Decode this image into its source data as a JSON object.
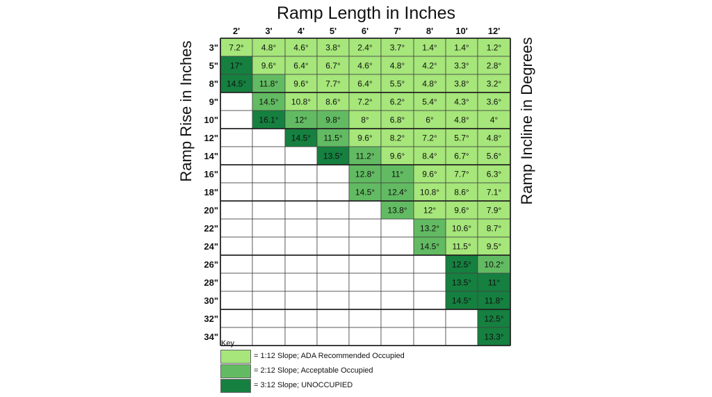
{
  "chart_data": {
    "type": "table",
    "title": "Ramp Length in Inches",
    "ylabel_left": "Ramp Rise in Inches",
    "ylabel_right": "Ramp Incline in Degrees",
    "columns": [
      "2'",
      "3'",
      "4'",
      "5'",
      "6'",
      "7'",
      "8'",
      "10'",
      "12'"
    ],
    "rows": [
      "3\"",
      "5\"",
      "8\"",
      "9\"",
      "10\"",
      "12\"",
      "14\"",
      "16\"",
      "18\"",
      "20\"",
      "22\"",
      "24\"",
      "26\"",
      "28\"",
      "30\"",
      "32\"",
      "34\""
    ],
    "cells": [
      [
        [
          "7.2°",
          1
        ],
        [
          "4.8°",
          1
        ],
        [
          "4.6°",
          1
        ],
        [
          "3.8°",
          1
        ],
        [
          "2.4°",
          1
        ],
        [
          "3.7°",
          1
        ],
        [
          "1.4°",
          1
        ],
        [
          "1.4°",
          1
        ],
        [
          "1.2°",
          1
        ]
      ],
      [
        [
          "17°",
          3
        ],
        [
          "9.6°",
          1
        ],
        [
          "6.4°",
          1
        ],
        [
          "6.7°",
          1
        ],
        [
          "4.6°",
          1
        ],
        [
          "4.8°",
          1
        ],
        [
          "4.2°",
          1
        ],
        [
          "3.3°",
          1
        ],
        [
          "2.8°",
          1
        ]
      ],
      [
        [
          "14.5°",
          3
        ],
        [
          "11.8°",
          2
        ],
        [
          "9.6°",
          1
        ],
        [
          "7.7°",
          1
        ],
        [
          "6.4°",
          1
        ],
        [
          "5.5°",
          1
        ],
        [
          "4.8°",
          1
        ],
        [
          "3.8°",
          1
        ],
        [
          "3.2°",
          1
        ]
      ],
      [
        [
          "",
          0
        ],
        [
          "14.5°",
          2
        ],
        [
          "10.8°",
          1
        ],
        [
          "8.6°",
          1
        ],
        [
          "7.2°",
          1
        ],
        [
          "6.2°",
          1
        ],
        [
          "5.4°",
          1
        ],
        [
          "4.3°",
          1
        ],
        [
          "3.6°",
          1
        ]
      ],
      [
        [
          "",
          0
        ],
        [
          "16.1°",
          3
        ],
        [
          "12°",
          2
        ],
        [
          "9.8°",
          2
        ],
        [
          "8°",
          1
        ],
        [
          "6.8°",
          1
        ],
        [
          "6°",
          1
        ],
        [
          "4.8°",
          1
        ],
        [
          "4°",
          1
        ]
      ],
      [
        [
          "",
          0
        ],
        [
          "",
          0
        ],
        [
          "14.5°",
          3
        ],
        [
          "11.5°",
          2
        ],
        [
          "9.6°",
          1
        ],
        [
          "8.2°",
          1
        ],
        [
          "7.2°",
          1
        ],
        [
          "5.7°",
          1
        ],
        [
          "4.8°",
          1
        ]
      ],
      [
        [
          "",
          0
        ],
        [
          "",
          0
        ],
        [
          "",
          0
        ],
        [
          "13.5°",
          3
        ],
        [
          "11.2°",
          2
        ],
        [
          "9.6°",
          1
        ],
        [
          "8.4°",
          1
        ],
        [
          "6.7°",
          1
        ],
        [
          "5.6°",
          1
        ]
      ],
      [
        [
          "",
          0
        ],
        [
          "",
          0
        ],
        [
          "",
          0
        ],
        [
          "",
          0
        ],
        [
          "12.8°",
          2
        ],
        [
          "11°",
          2
        ],
        [
          "9.6°",
          1
        ],
        [
          "7.7°",
          1
        ],
        [
          "6.3°",
          1
        ]
      ],
      [
        [
          "",
          0
        ],
        [
          "",
          0
        ],
        [
          "",
          0
        ],
        [
          "",
          0
        ],
        [
          "14.5°",
          2
        ],
        [
          "12.4°",
          2
        ],
        [
          "10.8°",
          1
        ],
        [
          "8.6°",
          1
        ],
        [
          "7.1°",
          1
        ]
      ],
      [
        [
          "",
          0
        ],
        [
          "",
          0
        ],
        [
          "",
          0
        ],
        [
          "",
          0
        ],
        [
          "",
          0
        ],
        [
          "13.8°",
          2
        ],
        [
          "12°",
          1
        ],
        [
          "9.6°",
          1
        ],
        [
          "7.9°",
          1
        ]
      ],
      [
        [
          "",
          0
        ],
        [
          "",
          0
        ],
        [
          "",
          0
        ],
        [
          "",
          0
        ],
        [
          "",
          0
        ],
        [
          "",
          0
        ],
        [
          "13.2°",
          2
        ],
        [
          "10.6°",
          1
        ],
        [
          "8.7°",
          1
        ]
      ],
      [
        [
          "",
          0
        ],
        [
          "",
          0
        ],
        [
          "",
          0
        ],
        [
          "",
          0
        ],
        [
          "",
          0
        ],
        [
          "",
          0
        ],
        [
          "14.5°",
          2
        ],
        [
          "11.5°",
          1
        ],
        [
          "9.5°",
          1
        ]
      ],
      [
        [
          "",
          0
        ],
        [
          "",
          0
        ],
        [
          "",
          0
        ],
        [
          "",
          0
        ],
        [
          "",
          0
        ],
        [
          "",
          0
        ],
        [
          "",
          0
        ],
        [
          "12.5°",
          3
        ],
        [
          "10.2°",
          2
        ]
      ],
      [
        [
          "",
          0
        ],
        [
          "",
          0
        ],
        [
          "",
          0
        ],
        [
          "",
          0
        ],
        [
          "",
          0
        ],
        [
          "",
          0
        ],
        [
          "",
          0
        ],
        [
          "13.5°",
          3
        ],
        [
          "11°",
          3
        ]
      ],
      [
        [
          "",
          0
        ],
        [
          "",
          0
        ],
        [
          "",
          0
        ],
        [
          "",
          0
        ],
        [
          "",
          0
        ],
        [
          "",
          0
        ],
        [
          "",
          0
        ],
        [
          "14.5°",
          3
        ],
        [
          "11.8°",
          3
        ]
      ],
      [
        [
          "",
          0
        ],
        [
          "",
          0
        ],
        [
          "",
          0
        ],
        [
          "",
          0
        ],
        [
          "",
          0
        ],
        [
          "",
          0
        ],
        [
          "",
          0
        ],
        [
          "",
          0
        ],
        [
          "12.5°",
          3
        ]
      ],
      [
        [
          "",
          0
        ],
        [
          "",
          0
        ],
        [
          "",
          0
        ],
        [
          "",
          0
        ],
        [
          "",
          0
        ],
        [
          "",
          0
        ],
        [
          "",
          0
        ],
        [
          "",
          0
        ],
        [
          "13.3°",
          3
        ]
      ]
    ],
    "colors": {
      "0": "#ffffff",
      "1": "#a6e67a",
      "2": "#62bb62",
      "3": "#15803f"
    },
    "key": {
      "title": "Key",
      "items": [
        {
          "level": 1,
          "label": "= 1:12 Slope; ADA Recommended Occupied"
        },
        {
          "level": 2,
          "label": "= 2:12 Slope; Acceptable Occupied"
        },
        {
          "level": 3,
          "label": "= 3:12 Slope; UNOCCUPIED"
        }
      ]
    }
  }
}
